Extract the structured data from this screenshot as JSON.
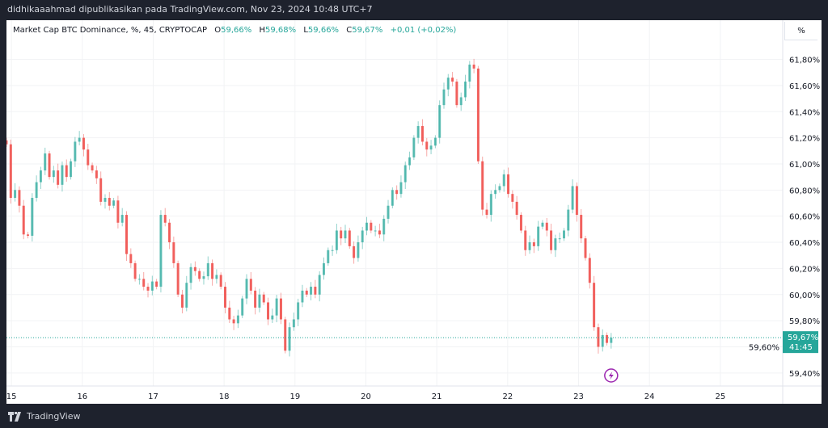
{
  "header": {
    "attribution": "didhikaaahmad dipublikasikan pada TradingView.com, Nov 23, 2024 10:48 UTC+7"
  },
  "legend": {
    "symbol": "Market Cap BTC Dominance, %, 45, CRYPTOCAP",
    "o_label": "O",
    "o": "59,66%",
    "h_label": "H",
    "h": "59,68%",
    "l_label": "L",
    "l": "59,66%",
    "c_label": "C",
    "c": "59,67%",
    "change": "+0,01 (+0,02%)"
  },
  "scale_button": "%",
  "last_price": {
    "value": "59,67%",
    "countdown": "41:45"
  },
  "footer": {
    "logo": "TradingView"
  },
  "colors": {
    "up": "#26a69a",
    "down": "#ef5350",
    "frame": "#1e222d",
    "alert_icon": "#9c27b0"
  },
  "icons": {
    "alert": "lightning-icon",
    "logo": "tradingview-logo-icon"
  },
  "chart_data": {
    "type": "candlestick",
    "interval": "45",
    "unit": "%",
    "xlabel": "",
    "ylabel": "",
    "ylim": [
      59.3,
      62.1
    ],
    "xlim": [
      14.93,
      25.88
    ],
    "x_range_of_candles": [
      14.93,
      23.46
    ],
    "x_ticks": [
      15,
      16,
      17,
      18,
      19,
      20,
      21,
      22,
      23,
      24,
      25
    ],
    "x_tick_labels": [
      "15",
      "16",
      "17",
      "18",
      "19",
      "20",
      "21",
      "22",
      "23",
      "24",
      "25"
    ],
    "y_ticks": [
      59.4,
      59.6,
      59.8,
      60.0,
      60.2,
      60.4,
      60.6,
      60.8,
      61.0,
      61.2,
      61.4,
      61.6,
      61.8
    ],
    "y_tick_labels": [
      "59,40%",
      "59,60%",
      "59,80%",
      "60,00%",
      "60,20%",
      "60,40%",
      "60,60%",
      "60,80%",
      "61,00%",
      "61,20%",
      "61,40%",
      "61,60%",
      "61,80%"
    ],
    "last_value": 59.67,
    "grid": true,
    "closes": [
      61.15,
      60.74,
      60.8,
      60.68,
      60.46,
      60.45,
      60.74,
      60.86,
      60.95,
      61.08,
      60.9,
      60.95,
      60.84,
      60.99,
      60.9,
      61.02,
      61.17,
      61.2,
      61.11,
      60.99,
      60.95,
      60.89,
      60.71,
      60.74,
      60.68,
      60.72,
      60.55,
      60.61,
      60.31,
      60.24,
      60.12,
      60.12,
      60.06,
      60.03,
      60.1,
      60.06,
      60.61,
      60.55,
      60.4,
      60.24,
      60.0,
      59.9,
      60.09,
      60.21,
      60.18,
      60.12,
      60.14,
      60.24,
      60.12,
      60.15,
      60.06,
      59.9,
      59.81,
      59.78,
      59.84,
      59.97,
      60.12,
      60.03,
      59.9,
      60.0,
      59.94,
      59.81,
      59.84,
      59.97,
      59.81,
      59.57,
      59.75,
      59.81,
      59.94,
      60.03,
      60.0,
      60.06,
      60.0,
      60.15,
      60.24,
      60.34,
      60.34,
      60.49,
      60.43,
      60.49,
      60.37,
      60.28,
      60.4,
      60.49,
      60.55,
      60.49,
      60.49,
      60.46,
      60.58,
      60.68,
      60.8,
      60.77,
      60.86,
      60.99,
      61.05,
      61.2,
      61.29,
      61.17,
      61.11,
      61.14,
      61.2,
      61.45,
      61.57,
      61.66,
      61.63,
      61.45,
      61.51,
      61.63,
      61.76,
      61.73,
      61.02,
      60.65,
      60.61,
      60.77,
      60.8,
      60.83,
      60.92,
      60.77,
      60.71,
      60.61,
      60.49,
      60.34,
      60.4,
      60.37,
      60.52,
      60.55,
      60.49,
      60.34,
      60.43,
      60.43,
      60.49,
      60.65,
      60.83,
      60.61,
      60.43,
      60.28,
      60.09,
      59.75,
      59.6,
      59.69,
      59.63,
      59.67
    ]
  }
}
